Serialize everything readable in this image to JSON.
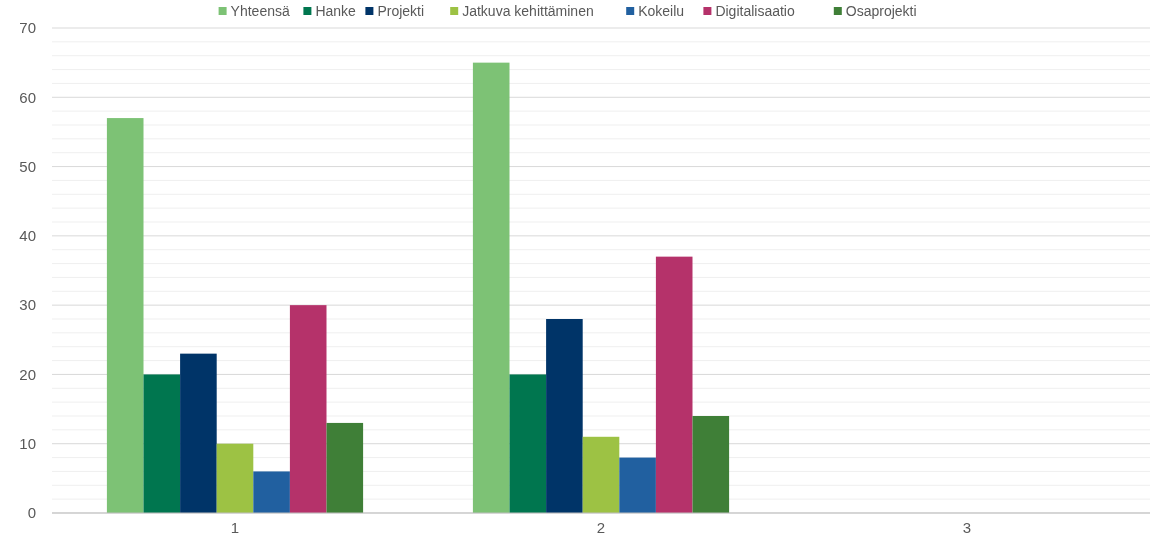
{
  "chart_data": {
    "type": "bar",
    "categories": [
      "1",
      "2",
      "3"
    ],
    "series": [
      {
        "name": "Yhteensä",
        "color": "#7dc275",
        "values": [
          57,
          65,
          null
        ]
      },
      {
        "name": "Hanke",
        "color": "#00764f",
        "values": [
          20,
          20,
          null
        ]
      },
      {
        "name": "Projekti",
        "color": "#003468",
        "values": [
          23,
          28,
          null
        ]
      },
      {
        "name": "Jatkuva kehittäminen",
        "color": "#9dc244",
        "values": [
          10,
          11,
          null
        ]
      },
      {
        "name": "Kokeilu",
        "color": "#2160a0",
        "values": [
          6,
          8,
          null
        ]
      },
      {
        "name": "Digitalisaatio",
        "color": "#b5326a",
        "values": [
          30,
          37,
          null
        ]
      },
      {
        "name": "Osaprojekti",
        "color": "#3f7f37",
        "values": [
          13,
          14,
          null
        ]
      }
    ],
    "ylim": [
      0,
      70
    ],
    "yticks": [
      0,
      10,
      20,
      30,
      40,
      50,
      60,
      70
    ],
    "grid": "y",
    "legend": "top"
  }
}
